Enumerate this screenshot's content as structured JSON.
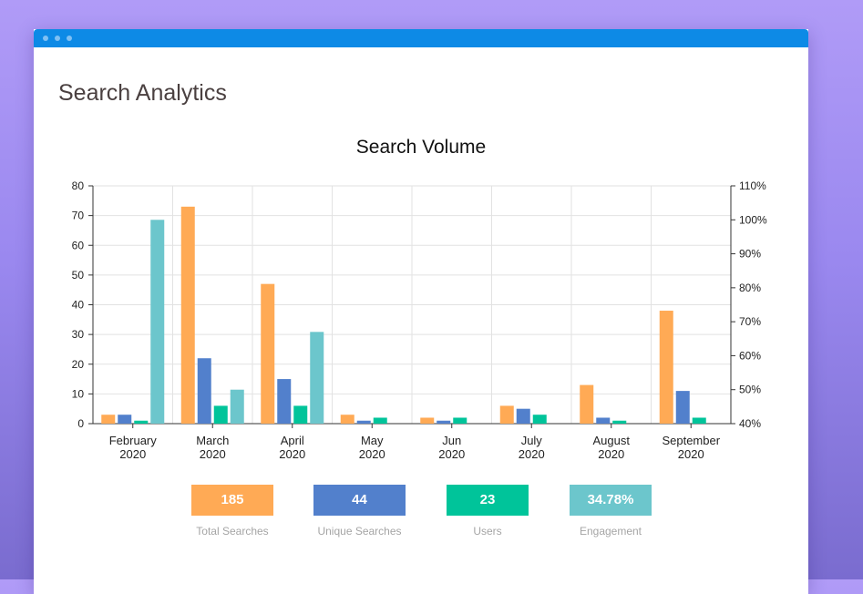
{
  "page_title": "Search Analytics",
  "window": {
    "controls": [
      "dot",
      "dot",
      "dot"
    ]
  },
  "colors": {
    "titlebar": "#0d8ae6",
    "total_searches": "#ffaa55",
    "unique_searches": "#5280cc",
    "users": "#00c49a",
    "engagement": "#6cc6cc"
  },
  "chart_data": {
    "type": "bar",
    "title": "Search Volume",
    "categories": [
      [
        "February",
        "2020"
      ],
      [
        "March",
        "2020"
      ],
      [
        "April",
        "2020"
      ],
      [
        "May",
        "2020"
      ],
      [
        "Jun",
        "2020"
      ],
      [
        "July",
        "2020"
      ],
      [
        "August",
        "2020"
      ],
      [
        "September",
        "2020"
      ]
    ],
    "y_left": {
      "ticks": [
        0,
        10,
        20,
        30,
        40,
        50,
        60,
        70,
        80
      ],
      "ylim": [
        0,
        80
      ]
    },
    "y_right": {
      "ticks": [
        "40%",
        "50%",
        "60%",
        "70%",
        "80%",
        "90%",
        "100%",
        "110%"
      ],
      "ylim": [
        40,
        110
      ]
    },
    "grid": true,
    "series": [
      {
        "key": "total_searches",
        "axis": "left",
        "values": [
          3,
          73,
          47,
          3,
          2,
          6,
          13,
          38
        ]
      },
      {
        "key": "unique_searches",
        "axis": "left",
        "values": [
          3,
          22,
          15,
          1,
          1,
          5,
          2,
          11
        ]
      },
      {
        "key": "users",
        "axis": "left",
        "values": [
          1,
          6,
          6,
          2,
          2,
          3,
          1,
          2
        ]
      },
      {
        "key": "engagement",
        "axis": "right",
        "values": [
          100,
          50,
          67,
          null,
          null,
          null,
          null,
          null
        ]
      }
    ]
  },
  "stats": [
    {
      "key": "total_searches",
      "value": "185",
      "label": "Total Searches"
    },
    {
      "key": "unique_searches",
      "value": "44",
      "label": "Unique Searches"
    },
    {
      "key": "users",
      "value": "23",
      "label": "Users"
    },
    {
      "key": "engagement",
      "value": "34.78%",
      "label": "Engagement"
    }
  ]
}
